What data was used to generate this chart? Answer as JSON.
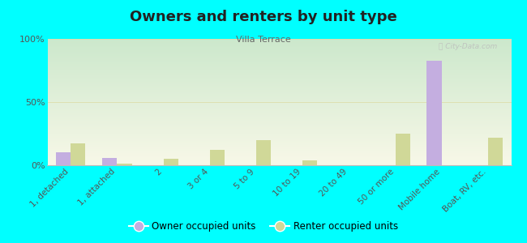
{
  "title": "Owners and renters by unit type",
  "subtitle": "Villa Terrace",
  "categories": [
    "1, detached",
    "1, attached",
    "2",
    "3 or 4",
    "5 to 9",
    "10 to 19",
    "20 to 49",
    "50 or more",
    "Mobile home",
    "Boat, RV, etc."
  ],
  "owner_values": [
    10,
    6,
    0,
    0,
    0,
    0,
    0,
    0,
    83,
    0
  ],
  "renter_values": [
    17,
    1,
    5,
    12,
    20,
    4,
    0,
    25,
    0,
    22
  ],
  "owner_color": "#c4aee0",
  "renter_color": "#d0d898",
  "background_top": "#cce8cc",
  "background_bottom": "#f8f8e8",
  "ylim": [
    0,
    100
  ],
  "yticks": [
    0,
    50,
    100
  ],
  "ytick_labels": [
    "0%",
    "50%",
    "100%"
  ],
  "bar_width": 0.32,
  "bgcolor": "#00ffff",
  "watermark": "Ⓢ City-Data.com",
  "legend_owner": "Owner occupied units",
  "legend_renter": "Renter occupied units"
}
